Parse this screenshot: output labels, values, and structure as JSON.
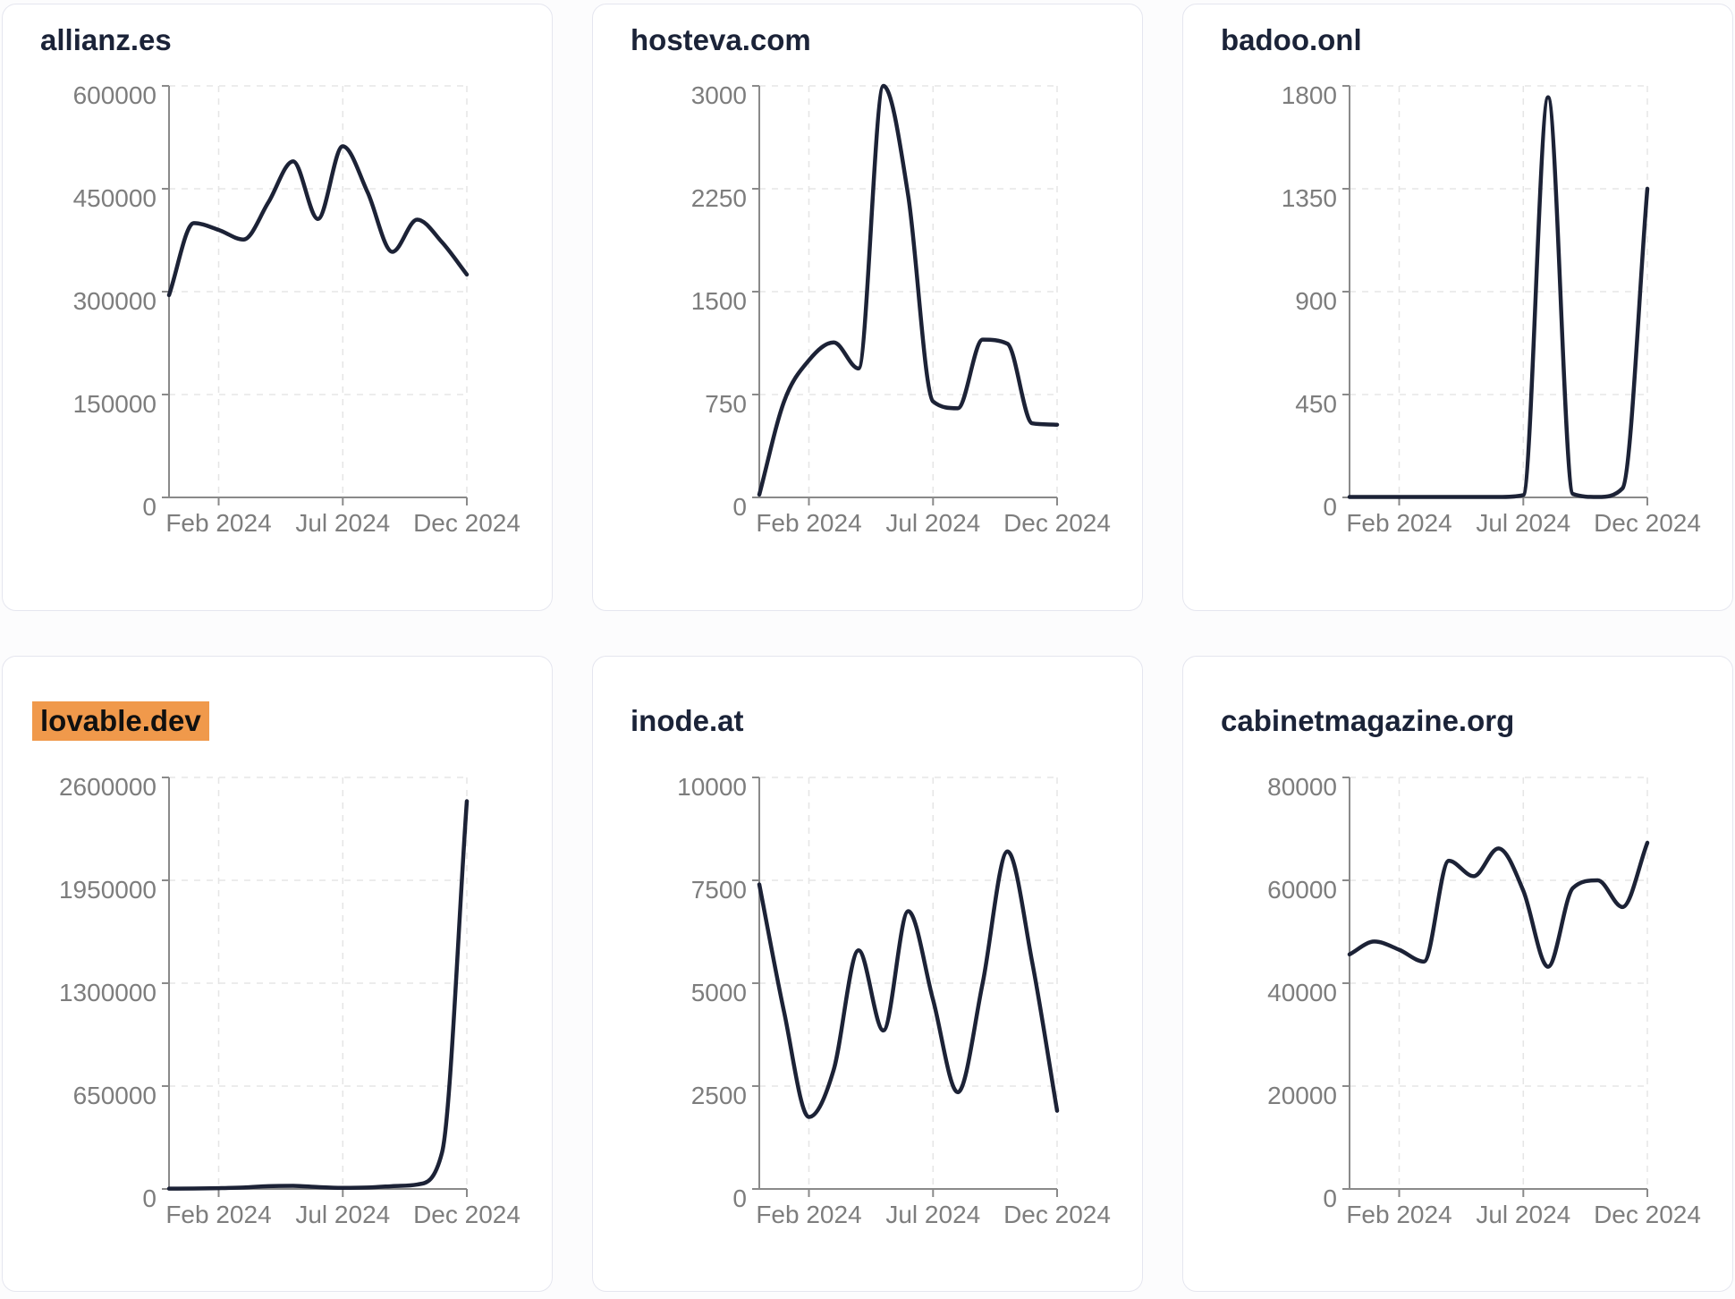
{
  "page": {
    "background": "#fcfcfd",
    "card_background": "#ffffff",
    "card_border_color": "#e5e6ef"
  },
  "style": {
    "line_color": "#1c2236",
    "title_color": "#1b2338",
    "axis_color": "#8a8a8a",
    "tick_label_color": "#7d7d7d",
    "gridline_color": "#e5e5e5",
    "highlight_color": "#f0994b"
  },
  "chart_data": [
    {
      "type": "line",
      "title": "allianz.es",
      "highlighted": false,
      "x": [
        "Dec 2023",
        "Jan 2024",
        "Feb 2024",
        "Mar 2024",
        "Apr 2024",
        "May 2024",
        "Jun 2024",
        "Jul 2024",
        "Aug 2024",
        "Sep 2024",
        "Oct 2024",
        "Nov 2024",
        "Dec 2024"
      ],
      "values": [
        295000,
        400000,
        390000,
        376000,
        430000,
        490000,
        406000,
        512000,
        445000,
        358000,
        405000,
        372000,
        325000
      ],
      "y_ticks": [
        0,
        150000,
        300000,
        450000,
        600000
      ],
      "ylim": [
        0,
        600000
      ],
      "x_tick_labels": [
        "Feb 2024",
        "Jul 2024",
        "Dec 2024"
      ],
      "x_tick_indices": [
        2,
        7,
        12
      ],
      "grid": true,
      "legend": false
    },
    {
      "type": "line",
      "title": "hosteva.com",
      "highlighted": false,
      "x": [
        "Dec 2023",
        "Jan 2024",
        "Feb 2024",
        "Mar 2024",
        "Apr 2024",
        "May 2024",
        "Jun 2024",
        "Jul 2024",
        "Aug 2024",
        "Sep 2024",
        "Oct 2024",
        "Nov 2024",
        "Dec 2024"
      ],
      "values": [
        20,
        700,
        1000,
        1130,
        940,
        3000,
        2200,
        700,
        650,
        1150,
        1120,
        540,
        530
      ],
      "y_ticks": [
        0,
        750,
        1500,
        2250,
        3000
      ],
      "ylim": [
        0,
        3000
      ],
      "x_tick_labels": [
        "Feb 2024",
        "Jul 2024",
        "Dec 2024"
      ],
      "x_tick_indices": [
        2,
        7,
        12
      ],
      "grid": true,
      "legend": false
    },
    {
      "type": "line",
      "title": "badoo.onl",
      "highlighted": false,
      "x": [
        "Dec 2023",
        "Jan 2024",
        "Feb 2024",
        "Mar 2024",
        "Apr 2024",
        "May 2024",
        "Jun 2024",
        "Jul 2024",
        "Aug 2024",
        "Sep 2024",
        "Oct 2024",
        "Nov 2024",
        "Dec 2024"
      ],
      "values": [
        2,
        2,
        2,
        2,
        2,
        2,
        2,
        10,
        1750,
        15,
        2,
        40,
        1350
      ],
      "y_ticks": [
        0,
        450,
        900,
        1350,
        1800
      ],
      "ylim": [
        0,
        1800
      ],
      "x_tick_labels": [
        "Feb 2024",
        "Jul 2024",
        "Dec 2024"
      ],
      "x_tick_indices": [
        2,
        7,
        12
      ],
      "grid": true,
      "legend": false
    },
    {
      "type": "line",
      "title": "lovable.dev",
      "highlighted": true,
      "x": [
        "Dec 2023",
        "Jan 2024",
        "Feb 2024",
        "Mar 2024",
        "Apr 2024",
        "May 2024",
        "Jun 2024",
        "Jul 2024",
        "Aug 2024",
        "Sep 2024",
        "Oct 2024",
        "Nov 2024",
        "Dec 2024"
      ],
      "values": [
        2000,
        3000,
        5000,
        9000,
        18000,
        20000,
        12000,
        7000,
        9000,
        18000,
        28000,
        230000,
        2450000
      ],
      "y_ticks": [
        0,
        650000,
        1300000,
        1950000,
        2600000
      ],
      "ylim": [
        0,
        2600000
      ],
      "x_tick_labels": [
        "Feb 2024",
        "Jul 2024",
        "Dec 2024"
      ],
      "x_tick_indices": [
        2,
        7,
        12
      ],
      "grid": true,
      "legend": false
    },
    {
      "type": "line",
      "title": "inode.at",
      "highlighted": false,
      "x": [
        "Dec 2023",
        "Jan 2024",
        "Feb 2024",
        "Mar 2024",
        "Apr 2024",
        "May 2024",
        "Jun 2024",
        "Jul 2024",
        "Aug 2024",
        "Sep 2024",
        "Oct 2024",
        "Nov 2024",
        "Dec 2024"
      ],
      "values": [
        7400,
        4300,
        1750,
        2900,
        5800,
        3850,
        6750,
        4600,
        2350,
        5000,
        8200,
        5500,
        1900
      ],
      "y_ticks": [
        0,
        2500,
        5000,
        7500,
        10000
      ],
      "ylim": [
        0,
        10000
      ],
      "x_tick_labels": [
        "Feb 2024",
        "Jul 2024",
        "Dec 2024"
      ],
      "x_tick_indices": [
        2,
        7,
        12
      ],
      "grid": true,
      "legend": false
    },
    {
      "type": "line",
      "title": "cabinetmagazine.org",
      "highlighted": false,
      "x": [
        "Dec 2023",
        "Jan 2024",
        "Feb 2024",
        "Mar 2024",
        "Apr 2024",
        "May 2024",
        "Jun 2024",
        "Jul 2024",
        "Aug 2024",
        "Sep 2024",
        "Oct 2024",
        "Nov 2024",
        "Dec 2024"
      ],
      "values": [
        45600,
        48100,
        46500,
        44200,
        63800,
        60800,
        66200,
        58000,
        43200,
        58500,
        60000,
        54800,
        67300
      ],
      "y_ticks": [
        0,
        20000,
        40000,
        60000,
        80000
      ],
      "ylim": [
        0,
        80000
      ],
      "x_tick_labels": [
        "Feb 2024",
        "Jul 2024",
        "Dec 2024"
      ],
      "x_tick_indices": [
        2,
        7,
        12
      ],
      "grid": true,
      "legend": false
    }
  ]
}
